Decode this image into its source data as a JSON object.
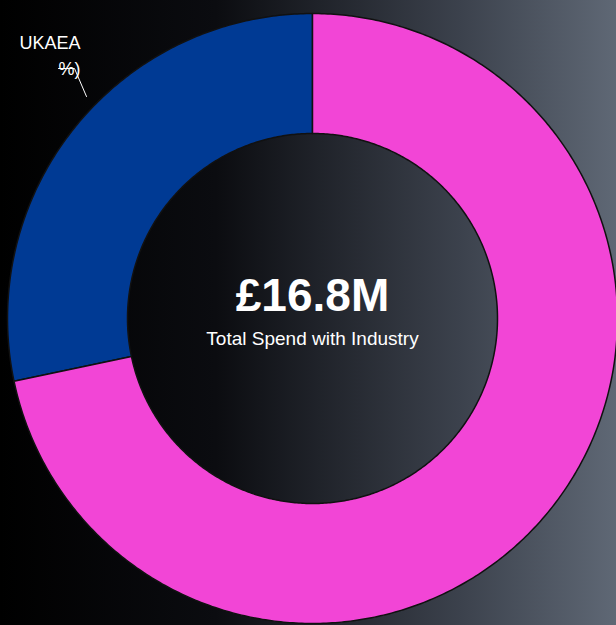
{
  "chart_data": {
    "type": "donut",
    "title": "£16.8M",
    "subtitle": "Total Spend with Industry",
    "categories": [
      "UKAEA",
      null
    ],
    "values": [
      28.3,
      71.7
    ],
    "value_labels": [
      "%)",
      null
    ],
    "colors": [
      "#003a94",
      "#f245d6"
    ],
    "tick_labels": false
  }
}
